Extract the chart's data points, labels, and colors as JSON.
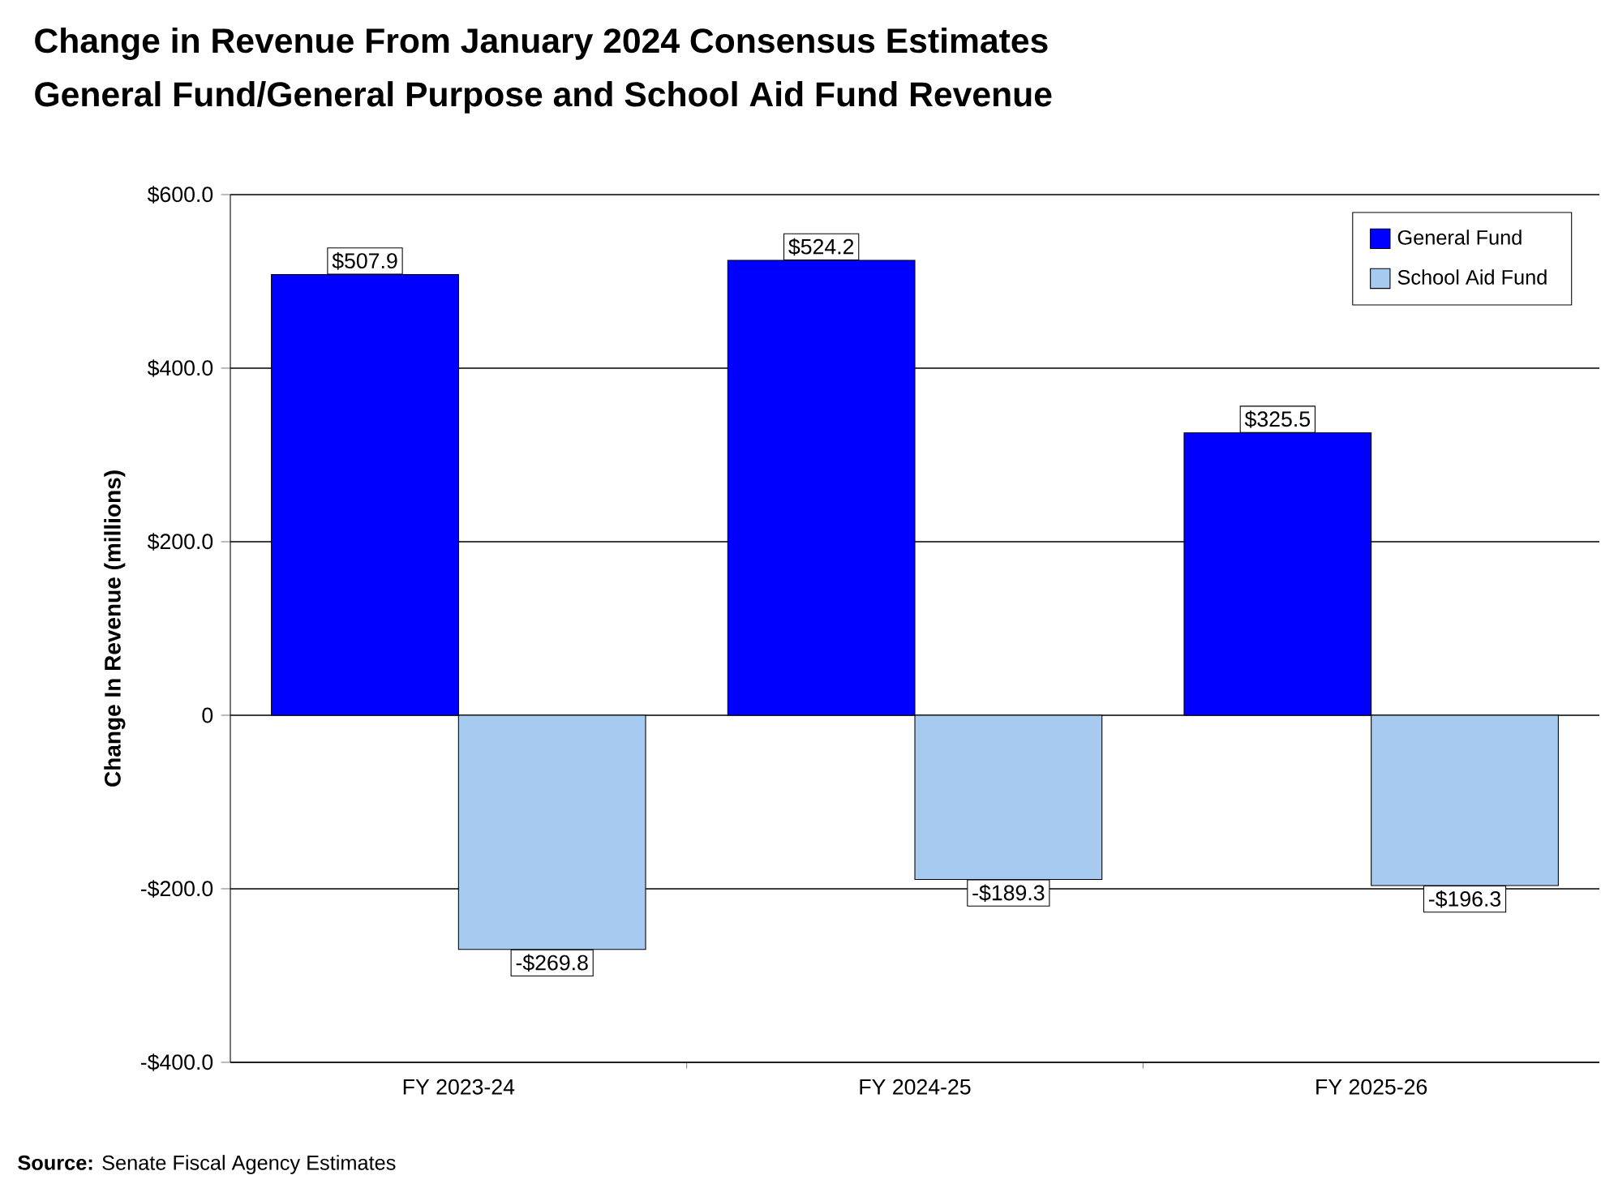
{
  "chart_data": {
    "type": "bar",
    "title": "Change in Revenue From January 2024 Consensus Estimates",
    "subtitle": "General Fund/General Purpose and School Aid Fund Revenue",
    "ylabel": "Change In Revenue (millions)",
    "categories": [
      "FY 2023-24",
      "FY 2024-25",
      "FY 2025-26"
    ],
    "series": [
      {
        "name": "General Fund",
        "color": "#0000ff",
        "values": [
          507.9,
          524.2,
          325.5
        ],
        "value_labels": [
          "$507.9",
          "$524.2",
          "$325.5"
        ]
      },
      {
        "name": "School Aid Fund",
        "color": "#a6caf0",
        "values": [
          -269.8,
          -189.3,
          -196.3
        ],
        "value_labels": [
          "-$269.8",
          "-$189.3",
          "-$196.3"
        ]
      }
    ],
    "ylim": [
      -400,
      600
    ],
    "yticks": [
      {
        "value": -400,
        "label": "-$400.0"
      },
      {
        "value": -200,
        "label": "-$200.0"
      },
      0,
      {
        "value": 200,
        "label": "$200.0"
      },
      {
        "value": 400,
        "label": "$400.0"
      },
      {
        "value": 600,
        "label": "$600.0"
      }
    ],
    "grid": "y",
    "legend": "top right",
    "annotations": [
      "**Source:** Senate Fiscal Agency Estimates"
    ]
  }
}
